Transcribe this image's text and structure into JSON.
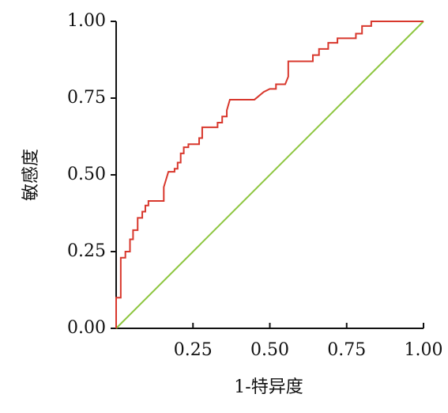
{
  "chart_data": {
    "type": "line",
    "xlabel": "1-特异度",
    "ylabel": "敏感度",
    "xlim": [
      0,
      1
    ],
    "ylim": [
      0,
      1
    ],
    "xticks": [
      0.25,
      {
        "value": 0.5,
        "label": "0.50"
      },
      0.75,
      {
        "value": 1,
        "label": "1.00"
      }
    ],
    "yticks": [
      {
        "value": 0,
        "label": "0.00"
      },
      0.25,
      {
        "value": 0.5,
        "label": "0.50"
      },
      0.75,
      {
        "value": 1,
        "label": "1.00"
      }
    ],
    "series": [
      {
        "color": "#d8372c",
        "x": [
          0,
          0,
          0.015,
          0.015,
          0.03,
          0.03,
          0.045,
          0.045,
          0.055,
          0.055,
          0.07,
          0.07,
          0.085,
          0.085,
          0.095,
          0.095,
          0.105,
          0.105,
          0.155,
          0.155,
          0.17,
          0.19,
          0.19,
          0.2,
          0.2,
          0.21,
          0.21,
          0.22,
          0.22,
          0.235,
          0.235,
          0.27,
          0.27,
          0.28,
          0.28,
          0.33,
          0.33,
          0.345,
          0.345,
          0.36,
          0.36,
          0.37,
          0.45,
          0.48,
          0.5,
          0.52,
          0.52,
          0.55,
          0.56,
          0.56,
          0.64,
          0.64,
          0.66,
          0.66,
          0.69,
          0.69,
          0.72,
          0.72,
          0.78,
          0.78,
          0.8,
          0.8,
          0.83,
          0.83,
          1
        ],
        "values": [
          0,
          0.1,
          0.1,
          0.23,
          0.23,
          0.25,
          0.25,
          0.29,
          0.29,
          0.32,
          0.32,
          0.36,
          0.36,
          0.38,
          0.38,
          0.4,
          0.4,
          0.415,
          0.415,
          0.46,
          0.51,
          0.51,
          0.52,
          0.52,
          0.54,
          0.54,
          0.57,
          0.57,
          0.59,
          0.59,
          0.6,
          0.6,
          0.62,
          0.62,
          0.655,
          0.655,
          0.67,
          0.67,
          0.69,
          0.69,
          0.71,
          0.745,
          0.745,
          0.77,
          0.78,
          0.78,
          0.795,
          0.795,
          0.82,
          0.87,
          0.87,
          0.89,
          0.89,
          0.91,
          0.91,
          0.93,
          0.93,
          0.945,
          0.945,
          0.96,
          0.96,
          0.985,
          0.985,
          1,
          1
        ]
      },
      {
        "color": "#8dc63f",
        "x": [
          0,
          1
        ],
        "values": [
          0,
          1
        ]
      }
    ]
  }
}
